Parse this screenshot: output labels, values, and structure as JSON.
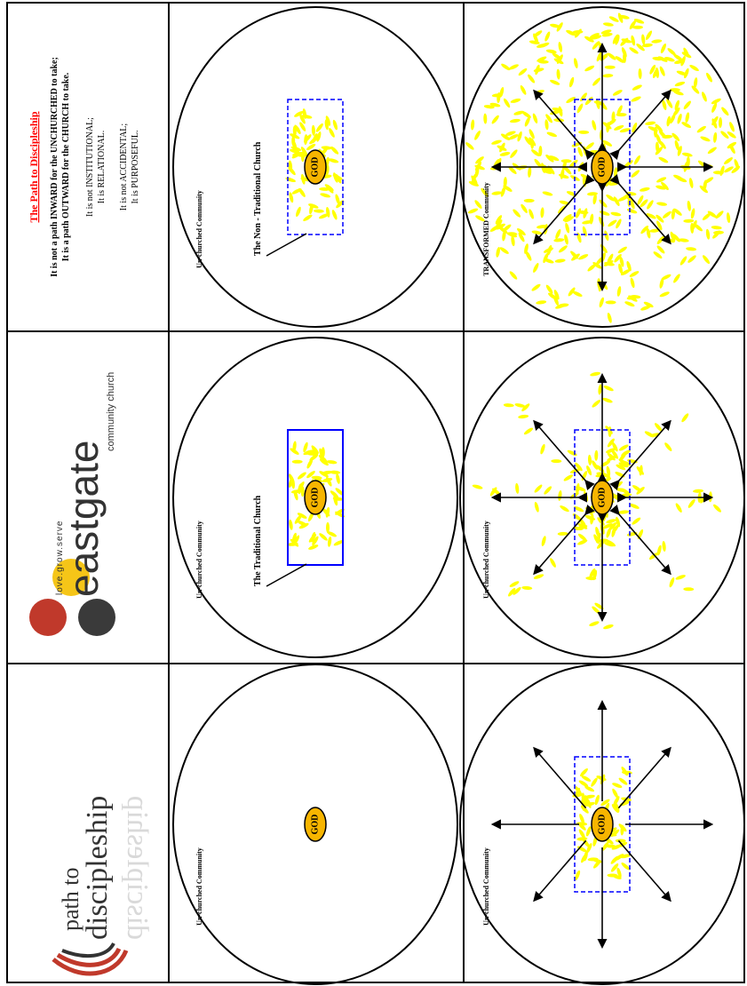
{
  "colors": {
    "seed": "#ffff00",
    "god_fill": "#f7b500",
    "god_stroke": "#000000",
    "box_blue": "#0000ff",
    "title_red": "#ff0000",
    "logo_red": "#c0392b",
    "logo_gray": "#3a3a3a",
    "logo_yellow": "#f5c518"
  },
  "header": {
    "path_logo": {
      "line1": "path to",
      "line2": "discipleship"
    },
    "eastgate_logo": {
      "tagline": "love.grow.serve",
      "name": "eastgate",
      "subname": "community church"
    },
    "intro": {
      "title": "The Path to Discipleship",
      "line1": "It is not a path INWARD for the UNCHURCHED to take;",
      "line2": "It is a path OUTWARD for the CHURCH to take.",
      "line3": "It is not INSTITUTIONAL;",
      "line4": "It is RELATIONAL.",
      "line5": "It is not ACCIDENTAL;",
      "line6": "It is PURPOSEFUL."
    }
  },
  "panels": [
    {
      "community_label": "Un-churched Community",
      "god_label": "GOD",
      "box": "none",
      "church_label": "",
      "seeds": "none",
      "arrows": false
    },
    {
      "community_label": "Un-churched Community",
      "god_label": "GOD",
      "box": "solid",
      "church_label": "The Traditional Church",
      "seeds": "box",
      "arrows": false
    },
    {
      "community_label": "Un-churched Community",
      "god_label": "GOD",
      "box": "dashed",
      "church_label": "The Non - Traditional Church",
      "seeds": "box",
      "arrows": false
    },
    {
      "community_label": "Un-churched Community",
      "god_label": "GOD",
      "box": "dashed",
      "church_label": "",
      "seeds": "box",
      "arrows": true
    },
    {
      "community_label": "Un-churched Community",
      "god_label": "GOD",
      "box": "dashed",
      "church_label": "",
      "seeds": "rays",
      "arrows": true
    },
    {
      "community_label": "TRANSFORMED Community",
      "god_label": "GOD",
      "box": "dashed",
      "church_label": "",
      "seeds": "full",
      "arrows": true
    }
  ]
}
